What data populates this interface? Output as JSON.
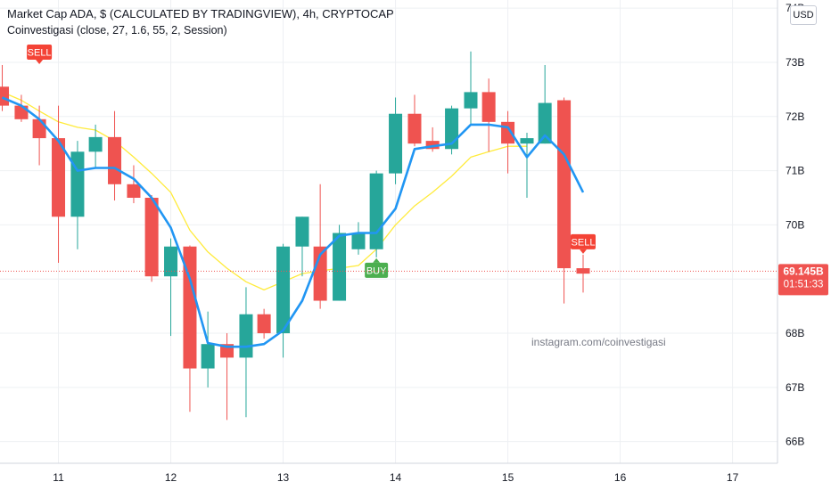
{
  "header": {
    "title": "Market Cap ADA, $ (CALCULATED BY TRADINGVIEW), 4h, CRYPTOCAP",
    "indicator": "Coinvestigasi (close, 27, 1.6, 55, 2, Session)"
  },
  "currency_button": "USD",
  "watermark": "instagram.com/coinvestigasi",
  "price_tag": {
    "price": "69.145B",
    "countdown": "01:51:33"
  },
  "colors": {
    "up": "#26a69a",
    "down": "#ef5350",
    "fast_line": "#2196f3",
    "slow_line": "#ffeb3b",
    "buy": "#4caf50",
    "sell": "#f44336",
    "grid": "#eef0f3",
    "price_line": "#ef5350"
  },
  "chart_data": {
    "type": "candlestick",
    "y_unit": "B",
    "ylim": [
      65.6,
      74.15
    ],
    "y_ticks": [
      66,
      67,
      68,
      69,
      70,
      71,
      72,
      73,
      74
    ],
    "y_tick_labels": [
      "66B",
      "67B",
      "68B",
      "",
      "70B",
      "71B",
      "72B",
      "73B",
      "74B"
    ],
    "xlim": [
      10.48,
      17.4
    ],
    "x_ticks": [
      11,
      12,
      13,
      14,
      15,
      16,
      17
    ],
    "x_tick_labels": [
      "11",
      "12",
      "13",
      "14",
      "15",
      "16",
      "17"
    ],
    "grid": true,
    "current_price": 69.145,
    "candles": [
      {
        "t": 10.5,
        "o": 72.55,
        "h": 72.95,
        "l": 72.1,
        "c": 72.2
      },
      {
        "t": 10.67,
        "o": 72.2,
        "h": 72.4,
        "l": 71.9,
        "c": 71.95
      },
      {
        "t": 10.83,
        "o": 71.95,
        "h": 72.2,
        "l": 71.1,
        "c": 71.6
      },
      {
        "t": 11.0,
        "o": 71.6,
        "h": 72.2,
        "l": 69.3,
        "c": 70.15
      },
      {
        "t": 11.17,
        "o": 70.15,
        "h": 71.55,
        "l": 69.55,
        "c": 71.35
      },
      {
        "t": 11.33,
        "o": 71.35,
        "h": 71.85,
        "l": 71.05,
        "c": 71.62
      },
      {
        "t": 11.5,
        "o": 71.62,
        "h": 72.1,
        "l": 70.45,
        "c": 70.75
      },
      {
        "t": 11.67,
        "o": 70.75,
        "h": 71.1,
        "l": 70.4,
        "c": 70.5
      },
      {
        "t": 11.83,
        "o": 70.5,
        "h": 70.55,
        "l": 68.95,
        "c": 69.05
      },
      {
        "t": 12.0,
        "o": 69.05,
        "h": 69.75,
        "l": 67.95,
        "c": 69.6
      },
      {
        "t": 12.17,
        "o": 69.6,
        "h": 69.62,
        "l": 66.55,
        "c": 67.35
      },
      {
        "t": 12.33,
        "o": 67.35,
        "h": 68.4,
        "l": 67.0,
        "c": 67.8
      },
      {
        "t": 12.5,
        "o": 67.8,
        "h": 68.0,
        "l": 66.4,
        "c": 67.55
      },
      {
        "t": 12.67,
        "o": 67.55,
        "h": 68.85,
        "l": 66.45,
        "c": 68.35
      },
      {
        "t": 12.83,
        "o": 68.35,
        "h": 68.45,
        "l": 67.9,
        "c": 68.0
      },
      {
        "t": 13.0,
        "o": 68.0,
        "h": 69.65,
        "l": 67.55,
        "c": 69.6
      },
      {
        "t": 13.17,
        "o": 69.6,
        "h": 70.15,
        "l": 69.05,
        "c": 70.15
      },
      {
        "t": 13.33,
        "o": 69.6,
        "h": 70.75,
        "l": 68.45,
        "c": 68.6
      },
      {
        "t": 13.5,
        "o": 68.6,
        "h": 70.0,
        "l": 68.6,
        "c": 69.85
      },
      {
        "t": 13.67,
        "o": 69.55,
        "h": 70.05,
        "l": 69.45,
        "c": 69.85
      },
      {
        "t": 13.83,
        "o": 69.55,
        "h": 71.0,
        "l": 69.4,
        "c": 70.95
      },
      {
        "t": 14.0,
        "o": 70.95,
        "h": 72.35,
        "l": 70.75,
        "c": 72.05
      },
      {
        "t": 14.17,
        "o": 72.05,
        "h": 72.4,
        "l": 71.45,
        "c": 71.5
      },
      {
        "t": 14.33,
        "o": 71.55,
        "h": 71.8,
        "l": 71.35,
        "c": 71.4
      },
      {
        "t": 14.5,
        "o": 71.4,
        "h": 72.2,
        "l": 71.3,
        "c": 72.15
      },
      {
        "t": 14.67,
        "o": 72.15,
        "h": 73.2,
        "l": 71.85,
        "c": 72.45
      },
      {
        "t": 14.83,
        "o": 72.45,
        "h": 72.7,
        "l": 71.35,
        "c": 71.9
      },
      {
        "t": 15.0,
        "o": 71.9,
        "h": 72.1,
        "l": 70.95,
        "c": 71.5
      },
      {
        "t": 15.17,
        "o": 71.5,
        "h": 71.7,
        "l": 70.5,
        "c": 71.6
      },
      {
        "t": 15.33,
        "o": 71.5,
        "h": 72.95,
        "l": 71.5,
        "c": 72.25
      },
      {
        "t": 15.5,
        "o": 72.3,
        "h": 72.35,
        "l": 68.55,
        "c": 69.2
      },
      {
        "t": 15.67,
        "o": 69.2,
        "h": 69.45,
        "l": 68.75,
        "c": 69.1
      }
    ],
    "series": [
      {
        "type": "line",
        "color": "#2196f3",
        "points": [
          [
            10.5,
            72.35
          ],
          [
            10.67,
            72.2
          ],
          [
            10.83,
            71.95
          ],
          [
            11.0,
            71.55
          ],
          [
            11.17,
            71.0
          ],
          [
            11.33,
            71.05
          ],
          [
            11.5,
            71.05
          ],
          [
            11.67,
            70.85
          ],
          [
            11.83,
            70.5
          ],
          [
            12.0,
            69.95
          ],
          [
            12.17,
            69.0
          ],
          [
            12.33,
            67.82
          ],
          [
            12.5,
            67.75
          ],
          [
            12.67,
            67.75
          ],
          [
            12.83,
            67.8
          ],
          [
            13.0,
            68.05
          ],
          [
            13.17,
            68.6
          ],
          [
            13.33,
            69.45
          ],
          [
            13.5,
            69.8
          ],
          [
            13.67,
            69.85
          ],
          [
            13.83,
            69.85
          ],
          [
            14.0,
            70.3
          ],
          [
            14.17,
            71.4
          ],
          [
            14.33,
            71.45
          ],
          [
            14.5,
            71.5
          ],
          [
            14.67,
            71.85
          ],
          [
            14.83,
            71.85
          ],
          [
            15.0,
            71.8
          ],
          [
            15.17,
            71.25
          ],
          [
            15.33,
            71.65
          ],
          [
            15.5,
            71.3
          ],
          [
            15.67,
            70.6
          ]
        ]
      },
      {
        "type": "line",
        "color": "#ffeb3b",
        "points": [
          [
            10.5,
            72.45
          ],
          [
            10.67,
            72.3
          ],
          [
            10.83,
            72.1
          ],
          [
            11.0,
            71.9
          ],
          [
            11.17,
            71.8
          ],
          [
            11.33,
            71.75
          ],
          [
            11.5,
            71.55
          ],
          [
            11.67,
            71.25
          ],
          [
            11.83,
            70.95
          ],
          [
            12.0,
            70.6
          ],
          [
            12.17,
            69.9
          ],
          [
            12.33,
            69.5
          ],
          [
            12.5,
            69.2
          ],
          [
            12.67,
            68.95
          ],
          [
            12.83,
            68.8
          ],
          [
            13.0,
            68.95
          ],
          [
            13.17,
            69.1
          ],
          [
            13.33,
            69.15
          ],
          [
            13.5,
            69.2
          ],
          [
            13.67,
            69.25
          ],
          [
            13.83,
            69.55
          ],
          [
            14.0,
            70.0
          ],
          [
            14.17,
            70.35
          ],
          [
            14.33,
            70.6
          ],
          [
            14.5,
            70.9
          ],
          [
            14.67,
            71.25
          ],
          [
            14.83,
            71.35
          ],
          [
            15.0,
            71.45
          ],
          [
            15.17,
            71.45
          ]
        ]
      }
    ],
    "signals": [
      {
        "type": "sell",
        "label": "SELL",
        "t": 10.83,
        "anchor": 72.95
      },
      {
        "type": "buy",
        "label": "BUY",
        "t": 13.83,
        "anchor": 69.4
      },
      {
        "type": "sell",
        "label": "SELL",
        "t": 15.67,
        "anchor": 69.45
      }
    ]
  }
}
